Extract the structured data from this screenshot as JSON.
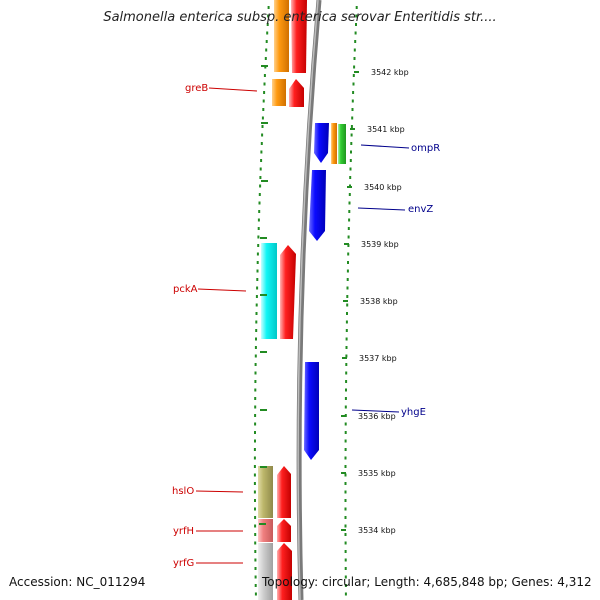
{
  "title": "Salmonella enterica subsp. enterica serovar Enteritidis str....",
  "accession_text": "Accession: NC_011294",
  "topology_text": "Topology: circular; Length: 4,685,848 bp; Genes: 4,312",
  "ticks": [
    {
      "label": "3542 kbp"
    },
    {
      "label": "3541 kbp"
    },
    {
      "label": "3540 kbp"
    },
    {
      "label": "3539 kbp"
    },
    {
      "label": "3538 kbp"
    },
    {
      "label": "3537 kbp"
    },
    {
      "label": "3536 kbp"
    },
    {
      "label": "3535 kbp"
    },
    {
      "label": "3534 kbp"
    }
  ],
  "genes_left": [
    {
      "name": "greB",
      "color": "#cc0000"
    },
    {
      "name": "pckA",
      "color": "#cc0000"
    },
    {
      "name": "hslO",
      "color": "#cc0000"
    },
    {
      "name": "yrfH",
      "color": "#cc0000"
    },
    {
      "name": "yrfG",
      "color": "#cc0000"
    }
  ],
  "genes_right": [
    {
      "name": "ompR",
      "color": "#00008b"
    },
    {
      "name": "envZ",
      "color": "#00008b"
    },
    {
      "name": "yhgE",
      "color": "#00008b"
    }
  ],
  "colors": {
    "forward_cds": "#ff0000",
    "reverse_cds": "#0000ff",
    "orange_feature": "#ff8c00",
    "cyan_feature": "#00ffff",
    "olive_feature": "#bdb76b",
    "pink_feature": "#f08080",
    "silver_feature": "#c0c0c0",
    "green_feature": "#32cd32",
    "backbone": "#808080",
    "dots": "#228b22"
  }
}
